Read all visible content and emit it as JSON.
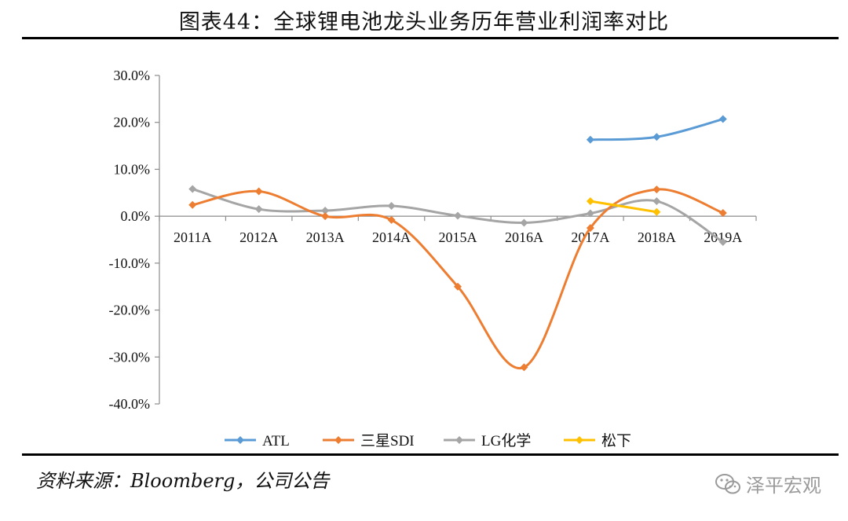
{
  "title": "图表44：全球锂电池龙头业务历年营业利润率对比",
  "source": "资料来源：Bloomberg，公司公告",
  "watermark": "泽平宏观",
  "chart_data": {
    "type": "line",
    "smooth": true,
    "categories": [
      "2011A",
      "2012A",
      "2013A",
      "2014A",
      "2015A",
      "2016A",
      "2017A",
      "2018A",
      "2019A"
    ],
    "ylim": [
      -0.4,
      0.3
    ],
    "yticks": [
      0.3,
      0.2,
      0.1,
      0.0,
      -0.1,
      -0.2,
      -0.3,
      -0.4
    ],
    "ytick_labels": [
      "30.0%",
      "20.0%",
      "10.0%",
      "0.0%",
      "-10.0%",
      "-20.0%",
      "-30.0%",
      "-40.0%"
    ],
    "legend_position": "bottom",
    "grid": false,
    "series": [
      {
        "name": "ATL",
        "color": "#5b9bd5",
        "values": [
          null,
          null,
          null,
          null,
          null,
          null,
          0.163,
          0.169,
          0.207
        ]
      },
      {
        "name": "三星SDI",
        "color": "#ed7d31",
        "values": [
          0.024,
          0.053,
          0.0,
          -0.008,
          -0.15,
          -0.322,
          -0.025,
          0.057,
          0.007
        ]
      },
      {
        "name": "LG化学",
        "color": "#a5a5a5",
        "values": [
          0.058,
          0.015,
          0.012,
          0.022,
          0.001,
          -0.014,
          0.006,
          0.032,
          -0.055
        ]
      },
      {
        "name": "松下",
        "color": "#ffc000",
        "values": [
          null,
          null,
          null,
          null,
          null,
          null,
          0.032,
          0.009,
          null
        ]
      }
    ]
  }
}
